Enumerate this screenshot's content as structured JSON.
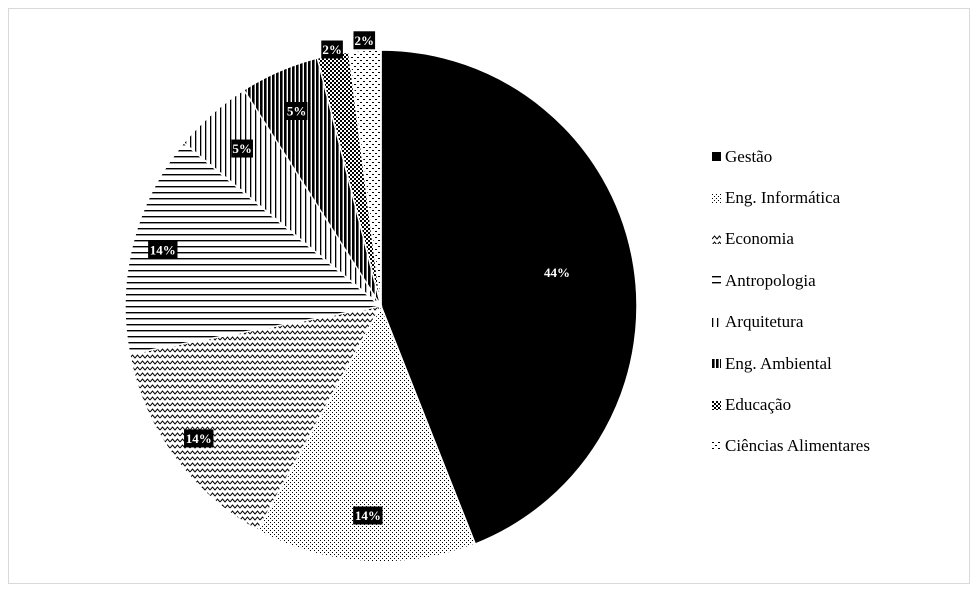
{
  "chart_data": {
    "type": "pie",
    "title": "",
    "legend_position": "right",
    "slices": [
      {
        "name": "Gestão",
        "value": 44,
        "label": "44%",
        "pattern": "solid"
      },
      {
        "name": "Eng. Informática",
        "value": 14,
        "label": "14%",
        "pattern": "dots"
      },
      {
        "name": "Economia",
        "value": 14,
        "label": "14%",
        "pattern": "zigzag"
      },
      {
        "name": "Antropologia",
        "value": 14,
        "label": "14%",
        "pattern": "horizontal"
      },
      {
        "name": "Arquitetura",
        "value": 5,
        "label": "5%",
        "pattern": "vertical-light"
      },
      {
        "name": "Eng. Ambiental",
        "value": 5,
        "label": "5%",
        "pattern": "vertical-dark"
      },
      {
        "name": "Educação",
        "value": 2,
        "label": "2%",
        "pattern": "checker"
      },
      {
        "name": "Ciências Alimentares",
        "value": 2,
        "label": "2%",
        "pattern": "dashes"
      }
    ],
    "colors": {
      "fill": "#000000",
      "background": "#ffffff",
      "label_box": "#000000",
      "label_text": "#ffffff"
    }
  }
}
